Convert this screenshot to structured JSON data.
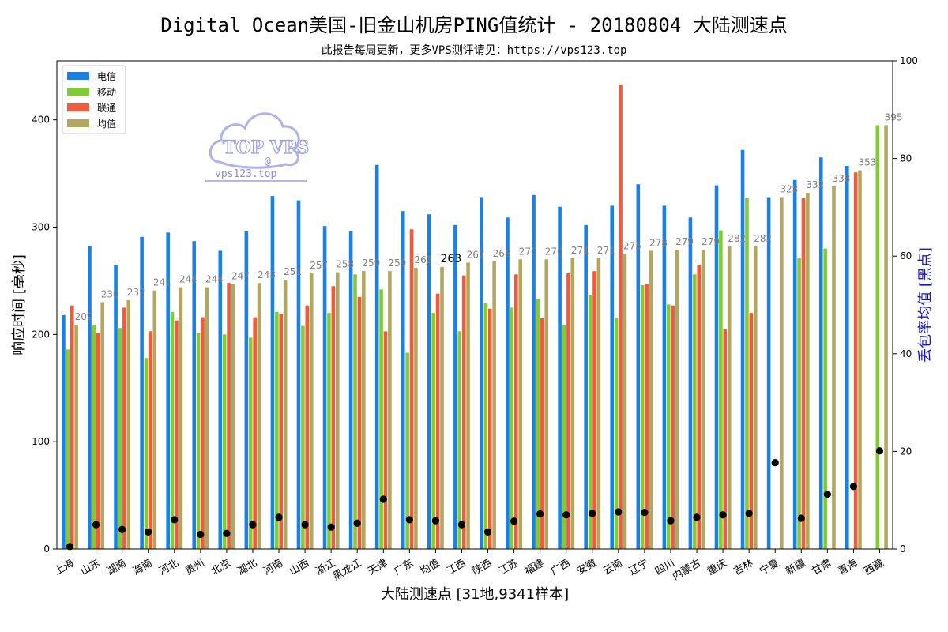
{
  "title": "Digital Ocean美国-旧金山机房PING值统计 - 20180804 大陆测速点",
  "subtitle": "此报告每周更新，更多VPS测评请见：https://vps123.top",
  "watermark": {
    "logo_text": "TOP VPS",
    "at": "@",
    "site": "vps123.top"
  },
  "chart_data": {
    "type": "bar",
    "xlabel": "大陆测速点 [31地,9341样本]",
    "ylabel": "响应时间 [毫秒]",
    "y2label": "丢包率均值 [黑点]",
    "ylim": [
      0,
      455
    ],
    "y2lim": [
      0,
      100
    ],
    "yticks": [
      0,
      100,
      200,
      300,
      400
    ],
    "y2ticks": [
      0,
      20,
      40,
      60,
      80,
      100
    ],
    "legend_position": "upper-left",
    "categories": [
      "上海",
      "山东",
      "湖南",
      "海南",
      "河北",
      "贵州",
      "北京",
      "湖北",
      "河南",
      "山西",
      "浙江",
      "黑龙江",
      "天津",
      "广东",
      "均值",
      "江西",
      "陕西",
      "江苏",
      "福建",
      "广西",
      "安徽",
      "云南",
      "辽宁",
      "四川",
      "内蒙古",
      "重庆",
      "吉林",
      "宁夏",
      "新疆",
      "甘肃",
      "青海",
      "西藏"
    ],
    "highlight_category": "均值",
    "series": [
      {
        "name": "电信",
        "color": "#1a80e6",
        "values": [
          218,
          282,
          265,
          291,
          295,
          287,
          278,
          296,
          329,
          325,
          301,
          296,
          358,
          315,
          312,
          302,
          328,
          309,
          330,
          319,
          302,
          320,
          340,
          320,
          309,
          339,
          372,
          328,
          344,
          365,
          357,
          null
        ]
      },
      {
        "name": "移动",
        "color": "#80cc33",
        "values": [
          186,
          209,
          206,
          178,
          221,
          201,
          200,
          197,
          221,
          208,
          220,
          256,
          242,
          183,
          220,
          203,
          229,
          225,
          233,
          209,
          237,
          215,
          246,
          228,
          256,
          297,
          327,
          null,
          271,
          280,
          null,
          395
        ]
      },
      {
        "name": "联通",
        "color": "#f25a3a",
        "values": [
          227,
          201,
          225,
          203,
          213,
          216,
          248,
          216,
          219,
          227,
          245,
          235,
          203,
          298,
          238,
          255,
          224,
          256,
          215,
          257,
          259,
          433,
          247,
          227,
          265,
          205,
          220,
          null,
          327,
          null,
          351,
          null
        ]
      },
      {
        "name": "均值",
        "color": "#b3a65e",
        "values": [
          209,
          230,
          232,
          241,
          244,
          244,
          247,
          248,
          251,
          257,
          258,
          259,
          259,
          262,
          263,
          267,
          268,
          270,
          270,
          271,
          271,
          275,
          278,
          279,
          279,
          282,
          282,
          328,
          332,
          338,
          353,
          395
        ]
      }
    ],
    "avg_labels": [
      "209",
      "230",
      "232",
      "241",
      "244",
      "244",
      "247",
      "248",
      "251",
      "257",
      "258",
      "259",
      "259",
      "262",
      "263",
      "267",
      "268",
      "270",
      "270",
      "271",
      "271",
      "275",
      "278",
      "279",
      "279",
      "282",
      "282",
      "328",
      "332",
      "338",
      "353",
      "395"
    ],
    "loss_rate": [
      0.5,
      5,
      4,
      3.5,
      6,
      3,
      3.2,
      5,
      6.5,
      5,
      4.5,
      5.3,
      10.2,
      6,
      5.8,
      5,
      3.5,
      5.7,
      7.2,
      7,
      7.3,
      7.6,
      7.5,
      5.8,
      6.5,
      7,
      7.3,
      17.7,
      6.3,
      11.2,
      12.8,
      20.1
    ]
  }
}
